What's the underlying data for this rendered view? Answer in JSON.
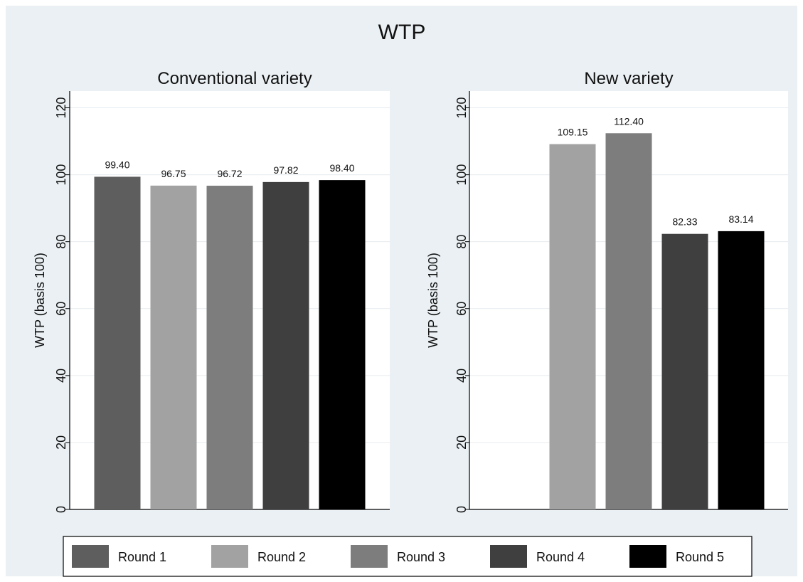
{
  "title": "WTP",
  "colors": {
    "outer_bg": "#eaf0f3",
    "plot_bg": "#ffffff",
    "grid": "#e6ecef",
    "axis": "#000000",
    "legend_border": "#000000"
  },
  "legend": {
    "position": "bottom",
    "entries": [
      {
        "name": "Round 1",
        "color": "#5e5e5e"
      },
      {
        "name": "Round 2",
        "color": "#a2a2a2"
      },
      {
        "name": "Round 3",
        "color": "#7d7d7d"
      },
      {
        "name": "Round 4",
        "color": "#3f3f3f"
      },
      {
        "name": "Round 5",
        "color": "#000000"
      }
    ]
  },
  "chart_data": [
    {
      "type": "bar",
      "title": "Conventional variety",
      "ylabel": "WTP (basis 100)",
      "xlabel": "",
      "ylim": [
        0,
        125
      ],
      "yticks": [
        "0",
        "20",
        "40",
        "60",
        "80",
        "100",
        "120"
      ],
      "grid": true,
      "bars": [
        {
          "series": "Round 1",
          "value": 99.4,
          "label": "99.40"
        },
        {
          "series": "Round 2",
          "value": 96.75,
          "label": "96.75"
        },
        {
          "series": "Round 3",
          "value": 96.72,
          "label": "96.72"
        },
        {
          "series": "Round 4",
          "value": 97.82,
          "label": "97.82"
        },
        {
          "series": "Round 5",
          "value": 98.4,
          "label": "98.40"
        }
      ]
    },
    {
      "type": "bar",
      "title": "New variety",
      "ylabel": "WTP (basis 100)",
      "xlabel": "",
      "ylim": [
        0,
        125
      ],
      "yticks": [
        "0",
        "20",
        "40",
        "60",
        "80",
        "100",
        "120"
      ],
      "grid": true,
      "bars": [
        {
          "series": "Round 1",
          "value": null,
          "label": ""
        },
        {
          "series": "Round 2",
          "value": 109.15,
          "label": "109.15"
        },
        {
          "series": "Round 3",
          "value": 112.4,
          "label": "112.40"
        },
        {
          "series": "Round 4",
          "value": 82.33,
          "label": "82.33"
        },
        {
          "series": "Round 5",
          "value": 83.14,
          "label": "83.14"
        }
      ]
    }
  ]
}
